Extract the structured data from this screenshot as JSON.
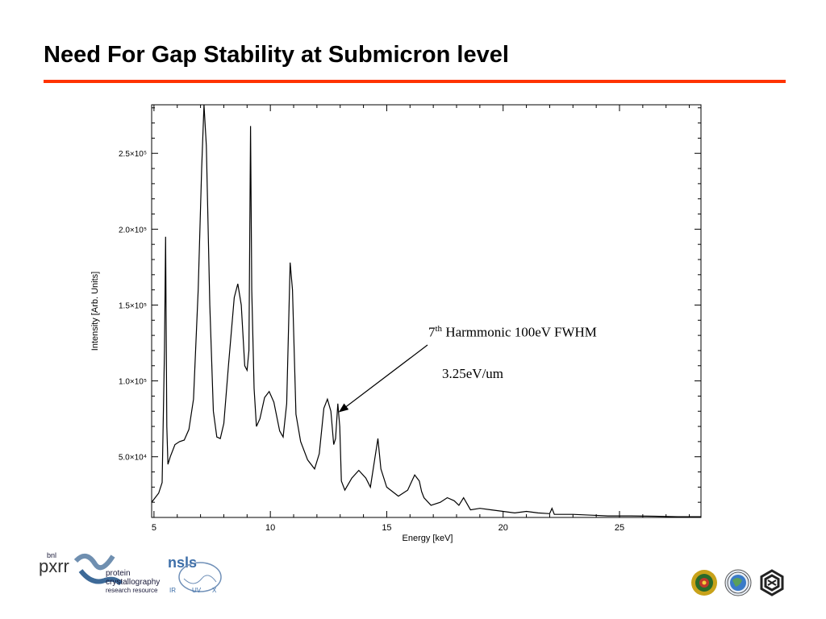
{
  "slide": {
    "title": "Need For Gap Stability at Submicron level",
    "accent_color": "#ff3300"
  },
  "annotation": {
    "harmonic_prefix": "7",
    "harmonic_sup": "th",
    "harmonic_rest": " Harmmonic 100eV FWHM",
    "slope": "3.25eV/um",
    "arrow_target": {
      "x": 12.9,
      "y": 85000
    }
  },
  "logos": {
    "left": {
      "bnl": "bnl",
      "pxrr": "pxrr",
      "line1": "protein",
      "line2": "crystallography",
      "line3": "research resource",
      "nsls": "nsls",
      "ir": "IR",
      "uv": "UV",
      "x": "X"
    },
    "right": [
      "emblem-icon",
      "globe-seal-icon",
      "hexagon-logo-icon"
    ]
  },
  "chart_data": {
    "type": "line",
    "title": "",
    "xlabel": "Energy [keV]",
    "ylabel": "Intensity [Arb. Units]",
    "xlim": [
      4.9,
      28.5
    ],
    "ylim": [
      10000,
      282000
    ],
    "x_ticks": [
      5,
      10,
      15,
      20,
      25
    ],
    "x_tick_labels": [
      "5",
      "10",
      "15",
      "20",
      "25"
    ],
    "y_ticks": [
      50000,
      100000,
      150000,
      200000,
      250000
    ],
    "y_tick_labels": [
      "5.0×10⁴",
      "1.0×10⁵",
      "1.5×10⁵",
      "2.0×10⁵",
      "2.5×10⁵"
    ],
    "grid": false,
    "series": [
      {
        "color": "#000000",
        "points": [
          [
            4.9,
            20000
          ],
          [
            5.0,
            22000
          ],
          [
            5.2,
            26000
          ],
          [
            5.35,
            33000
          ],
          [
            5.45,
            120000
          ],
          [
            5.5,
            195000
          ],
          [
            5.55,
            70000
          ],
          [
            5.6,
            45000
          ],
          [
            5.7,
            50000
          ],
          [
            5.9,
            58000
          ],
          [
            6.1,
            60000
          ],
          [
            6.3,
            61000
          ],
          [
            6.5,
            68000
          ],
          [
            6.7,
            88000
          ],
          [
            6.9,
            160000
          ],
          [
            7.05,
            240000
          ],
          [
            7.15,
            282000
          ],
          [
            7.25,
            255000
          ],
          [
            7.4,
            150000
          ],
          [
            7.55,
            80000
          ],
          [
            7.7,
            63000
          ],
          [
            7.85,
            62000
          ],
          [
            8.0,
            72000
          ],
          [
            8.2,
            110000
          ],
          [
            8.45,
            155000
          ],
          [
            8.6,
            164000
          ],
          [
            8.75,
            150000
          ],
          [
            8.9,
            110000
          ],
          [
            9.0,
            107000
          ],
          [
            9.08,
            120000
          ],
          [
            9.15,
            268000
          ],
          [
            9.2,
            160000
          ],
          [
            9.3,
            95000
          ],
          [
            9.4,
            70000
          ],
          [
            9.55,
            75000
          ],
          [
            9.75,
            89000
          ],
          [
            9.95,
            93000
          ],
          [
            10.15,
            86000
          ],
          [
            10.4,
            67000
          ],
          [
            10.55,
            63000
          ],
          [
            10.7,
            85000
          ],
          [
            10.85,
            178000
          ],
          [
            10.95,
            160000
          ],
          [
            11.1,
            78000
          ],
          [
            11.3,
            60000
          ],
          [
            11.6,
            48000
          ],
          [
            11.9,
            42000
          ],
          [
            12.1,
            52000
          ],
          [
            12.3,
            82000
          ],
          [
            12.45,
            88000
          ],
          [
            12.6,
            80000
          ],
          [
            12.72,
            58000
          ],
          [
            12.8,
            62000
          ],
          [
            12.9,
            85000
          ],
          [
            12.98,
            70000
          ],
          [
            13.05,
            34000
          ],
          [
            13.2,
            28000
          ],
          [
            13.5,
            36000
          ],
          [
            13.8,
            41000
          ],
          [
            14.1,
            36000
          ],
          [
            14.3,
            30000
          ],
          [
            14.5,
            50000
          ],
          [
            14.62,
            62000
          ],
          [
            14.75,
            42000
          ],
          [
            15.0,
            30000
          ],
          [
            15.5,
            24000
          ],
          [
            15.9,
            28000
          ],
          [
            16.2,
            38000
          ],
          [
            16.4,
            34000
          ],
          [
            16.5,
            27000
          ],
          [
            16.6,
            23000
          ],
          [
            16.9,
            18000
          ],
          [
            17.3,
            20000
          ],
          [
            17.6,
            23000
          ],
          [
            17.9,
            21000
          ],
          [
            18.1,
            18000
          ],
          [
            18.3,
            23000
          ],
          [
            18.45,
            19000
          ],
          [
            18.6,
            15000
          ],
          [
            19.0,
            16000
          ],
          [
            19.5,
            15000
          ],
          [
            20.0,
            14000
          ],
          [
            20.5,
            13000
          ],
          [
            21.0,
            14000
          ],
          [
            21.5,
            13000
          ],
          [
            22.0,
            12500
          ],
          [
            22.1,
            16000
          ],
          [
            22.2,
            12000
          ],
          [
            23.0,
            12000
          ],
          [
            23.8,
            11500
          ],
          [
            24.5,
            11000
          ],
          [
            25.5,
            11000
          ],
          [
            26.5,
            10800
          ],
          [
            27.5,
            10500
          ],
          [
            28.5,
            10500
          ]
        ]
      }
    ]
  }
}
